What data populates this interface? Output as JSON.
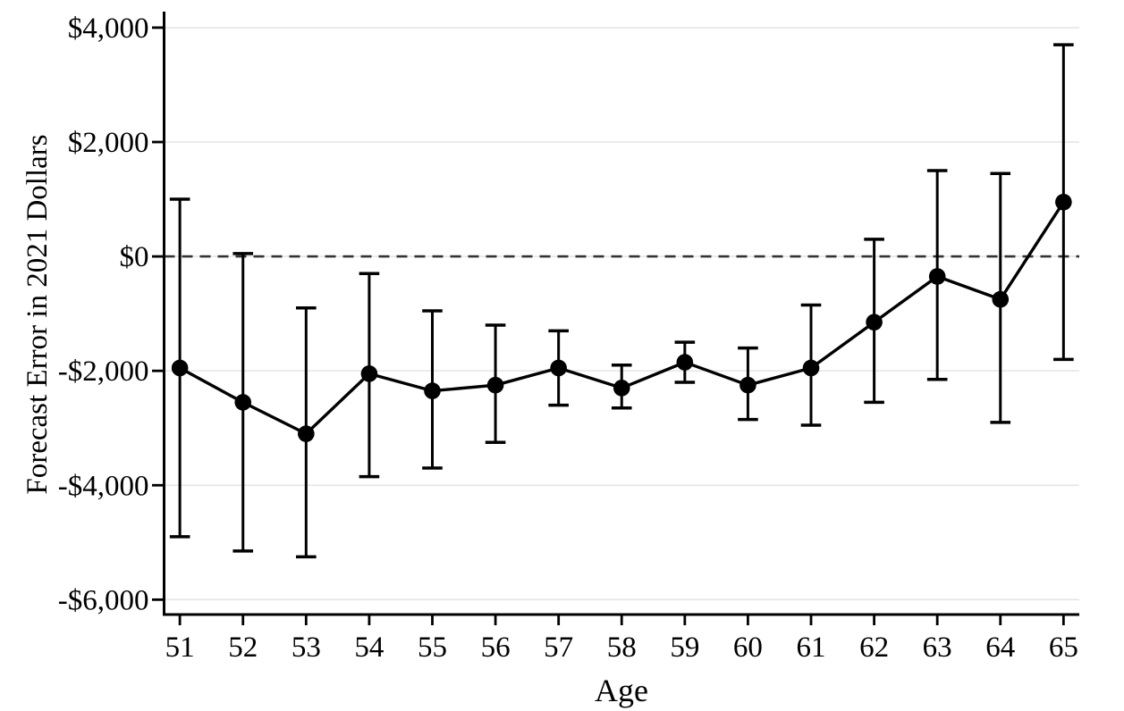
{
  "chart_data": {
    "type": "line",
    "title": "",
    "xlabel": "Age",
    "ylabel": "Forecast Error in 2021 Dollars",
    "x": [
      51,
      52,
      53,
      54,
      55,
      56,
      57,
      58,
      59,
      60,
      61,
      62,
      63,
      64,
      65
    ],
    "x_tick_labels": [
      "51",
      "52",
      "53",
      "54",
      "55",
      "56",
      "57",
      "58",
      "59",
      "60",
      "61",
      "62",
      "63",
      "64",
      "65"
    ],
    "values": [
      -1950,
      -2550,
      -3100,
      -2050,
      -2350,
      -2250,
      -1950,
      -2300,
      -1850,
      -2250,
      -1950,
      -1150,
      -350,
      -750,
      950
    ],
    "ci_upper": [
      1000,
      50,
      -900,
      -300,
      -950,
      -1200,
      -1300,
      -1900,
      -1500,
      -1600,
      -850,
      300,
      1500,
      1450,
      3700
    ],
    "ci_lower": [
      -4900,
      -5150,
      -5250,
      -3850,
      -3700,
      -3250,
      -2600,
      -2650,
      -2200,
      -2850,
      -2950,
      -2550,
      -2150,
      -2900,
      -1800
    ],
    "y_ticks": [
      {
        "value": 4000,
        "label": "$4,000"
      },
      {
        "value": 2000,
        "label": "$2,000"
      },
      {
        "value": 0,
        "label": "$0"
      },
      {
        "value": -2000,
        "label": "-$2,000"
      },
      {
        "value": -4000,
        "label": "-$4,000"
      },
      {
        "value": -6000,
        "label": "-$6,000"
      }
    ],
    "ylim": [
      -6260,
      4280
    ],
    "xlim": [
      50.75,
      65.25
    ],
    "grid": "horizontal",
    "legend": "none",
    "reference_line": {
      "value": 0,
      "style": "dashed"
    },
    "marker": "filled-circle",
    "colors": {
      "series": "#000000",
      "text": "#000000",
      "gridline": "#e6e6e6",
      "reference_line": "#333333",
      "background": "#ffffff"
    }
  }
}
